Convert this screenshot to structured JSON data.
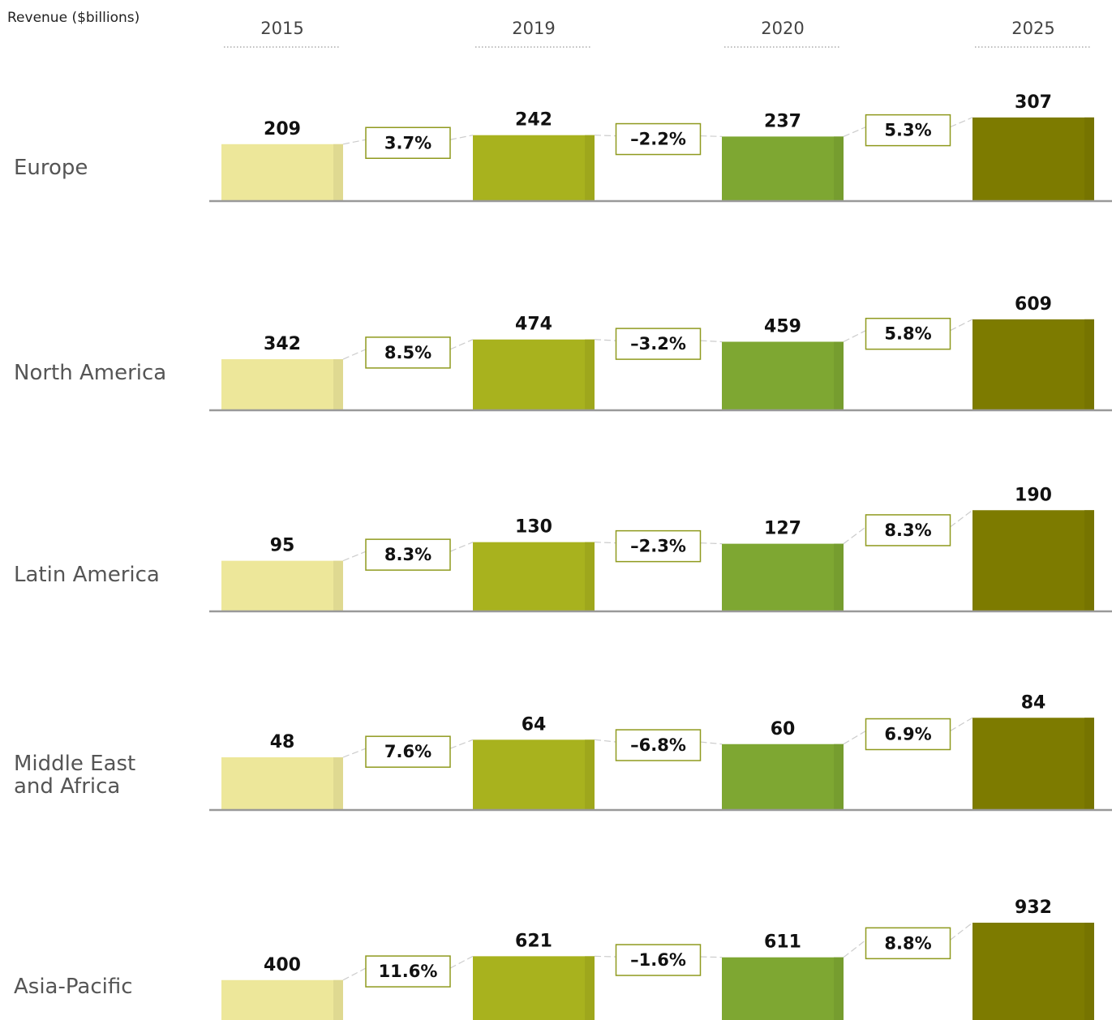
{
  "title": "Revenue ($billions)",
  "categories": [
    "2015",
    "2019",
    "2020",
    "2025"
  ],
  "colors": [
    "#ede79a",
    "#a8b21e",
    "#7ea732",
    "#7d7b00"
  ],
  "chart_data": [
    {
      "type": "bar",
      "title": "Europe",
      "values": [
        209,
        242,
        237,
        307
      ],
      "growth": [
        3.7,
        -2.2,
        5.3
      ],
      "growth_labels": [
        "3.7%",
        "–2.2%",
        "5.3%"
      ],
      "ylim": [
        0,
        387
      ]
    },
    {
      "type": "bar",
      "title": "North America",
      "values": [
        342,
        474,
        459,
        609
      ],
      "growth": [
        8.5,
        -3.2,
        5.8
      ],
      "growth_labels": [
        "8.5%",
        "–3.2%",
        "5.8%"
      ],
      "ylim": [
        0,
        706
      ]
    },
    {
      "type": "bar",
      "title": "Latin America",
      "values": [
        95,
        130,
        127,
        190
      ],
      "growth": [
        8.3,
        -2.3,
        8.3
      ],
      "growth_labels": [
        "8.3%",
        "–2.3%",
        "8.3%"
      ],
      "ylim": [
        0,
        198
      ]
    },
    {
      "type": "bar",
      "title": "Middle East and Africa",
      "values": [
        48,
        64,
        60,
        84
      ],
      "growth": [
        7.6,
        -6.8,
        6.9
      ],
      "growth_labels": [
        "7.6%",
        "–6.8%",
        "6.9%"
      ],
      "ylim": [
        0,
        96
      ]
    },
    {
      "type": "bar",
      "title": "Asia-Pacific",
      "values": [
        400,
        621,
        611,
        932
      ],
      "growth": [
        11.6,
        -1.6,
        8.8
      ],
      "growth_labels": [
        "11.6%",
        "–1.6%",
        "8.8%"
      ],
      "ylim": [
        0,
        977
      ]
    }
  ]
}
